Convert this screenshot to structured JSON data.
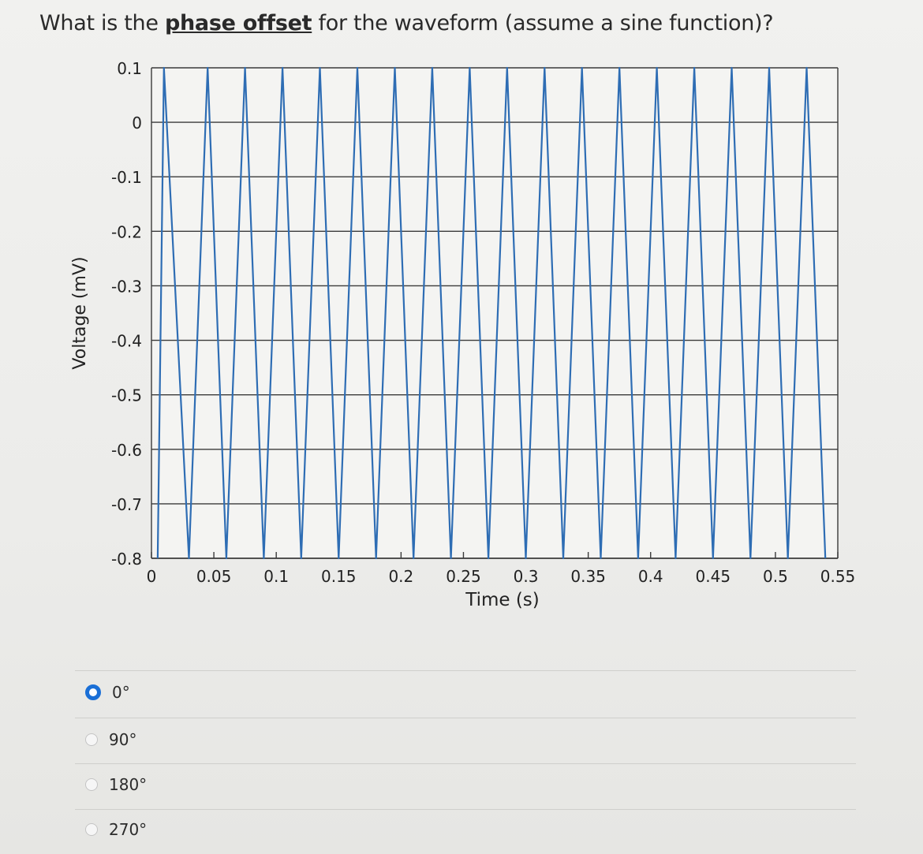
{
  "question": {
    "prefix": "What is the ",
    "emphasis": "phase offset",
    "suffix": " for the waveform (assume a sine function)?"
  },
  "chart_data": {
    "type": "line",
    "xlabel": "Time (s)",
    "ylabel": "Voltage (mV)",
    "xlim": [
      0,
      0.55
    ],
    "ylim": [
      -0.8,
      0.1
    ],
    "x_ticks": [
      "0",
      "0.05",
      "0.1",
      "0.15",
      "0.2",
      "0.25",
      "0.3",
      "0.35",
      "0.4",
      "0.45",
      "0.5",
      "0.55"
    ],
    "y_ticks": [
      "0.1",
      "0",
      "-0.1",
      "-0.2",
      "-0.3",
      "-0.4",
      "-0.5",
      "-0.6",
      "-0.7",
      "-0.8"
    ],
    "grid": true,
    "series": [
      {
        "color": "#2e6db4",
        "x": [
          0.005,
          0.01,
          0.03,
          0.045,
          0.06,
          0.075,
          0.09,
          0.105,
          0.12,
          0.135,
          0.15,
          0.165,
          0.18,
          0.195,
          0.21,
          0.225,
          0.24,
          0.255,
          0.27,
          0.285,
          0.3,
          0.315,
          0.33,
          0.345,
          0.36,
          0.375,
          0.39,
          0.405,
          0.42,
          0.435,
          0.45,
          0.465,
          0.48,
          0.495,
          0.51,
          0.525,
          0.54
        ],
        "y": [
          -0.8,
          0.1,
          -0.8,
          0.1,
          -0.8,
          0.1,
          -0.8,
          0.1,
          -0.8,
          0.1,
          -0.8,
          0.1,
          -0.8,
          0.1,
          -0.8,
          0.1,
          -0.8,
          0.1,
          -0.8,
          0.1,
          -0.8,
          0.1,
          -0.8,
          0.1,
          -0.8,
          0.1,
          -0.8,
          0.1,
          -0.8,
          0.1,
          -0.8,
          0.1,
          -0.8,
          0.1,
          -0.8,
          0.1,
          -0.8
        ]
      }
    ]
  },
  "options": [
    {
      "label": "0°",
      "selected": true
    },
    {
      "label": "90°",
      "selected": false
    },
    {
      "label": "180°",
      "selected": false
    },
    {
      "label": "270°",
      "selected": false
    }
  ]
}
